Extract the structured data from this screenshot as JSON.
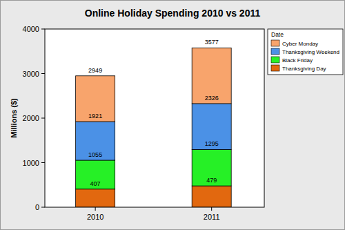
{
  "chart_data": {
    "type": "bar",
    "title": "Online Holiday Spending 2010 vs 2011",
    "y_label": "Millions ($)",
    "categories": [
      "2010",
      "2011"
    ],
    "series": [
      {
        "name": "Thanksgiving Day",
        "color": "#e2680f",
        "values": [
          407,
          479
        ]
      },
      {
        "name": "Black Friday",
        "color": "#26f026",
        "values": [
          648,
          816
        ]
      },
      {
        "name": "Thanksgiving Weekend",
        "color": "#4b91e6",
        "values": [
          866,
          1031
        ]
      },
      {
        "name": "Cyber Monday",
        "color": "#f8a46c",
        "values": [
          1028,
          1251
        ]
      }
    ],
    "stacked": true,
    "grid": false,
    "ylim": [
      0,
      4000
    ],
    "yticks": [
      0,
      1000,
      2000,
      3000,
      4000
    ],
    "legend": "upper right",
    "legend_title": "Date",
    "annotations": [
      {
        "category": "2010",
        "value": 407
      },
      {
        "category": "2010",
        "value": 1055
      },
      {
        "category": "2010",
        "value": 1921
      },
      {
        "category": "2010",
        "value": 2949
      },
      {
        "category": "2011",
        "value": 479
      },
      {
        "category": "2011",
        "value": 1295
      },
      {
        "category": "2011",
        "value": 2326
      },
      {
        "category": "2011",
        "value": 3577
      }
    ]
  }
}
